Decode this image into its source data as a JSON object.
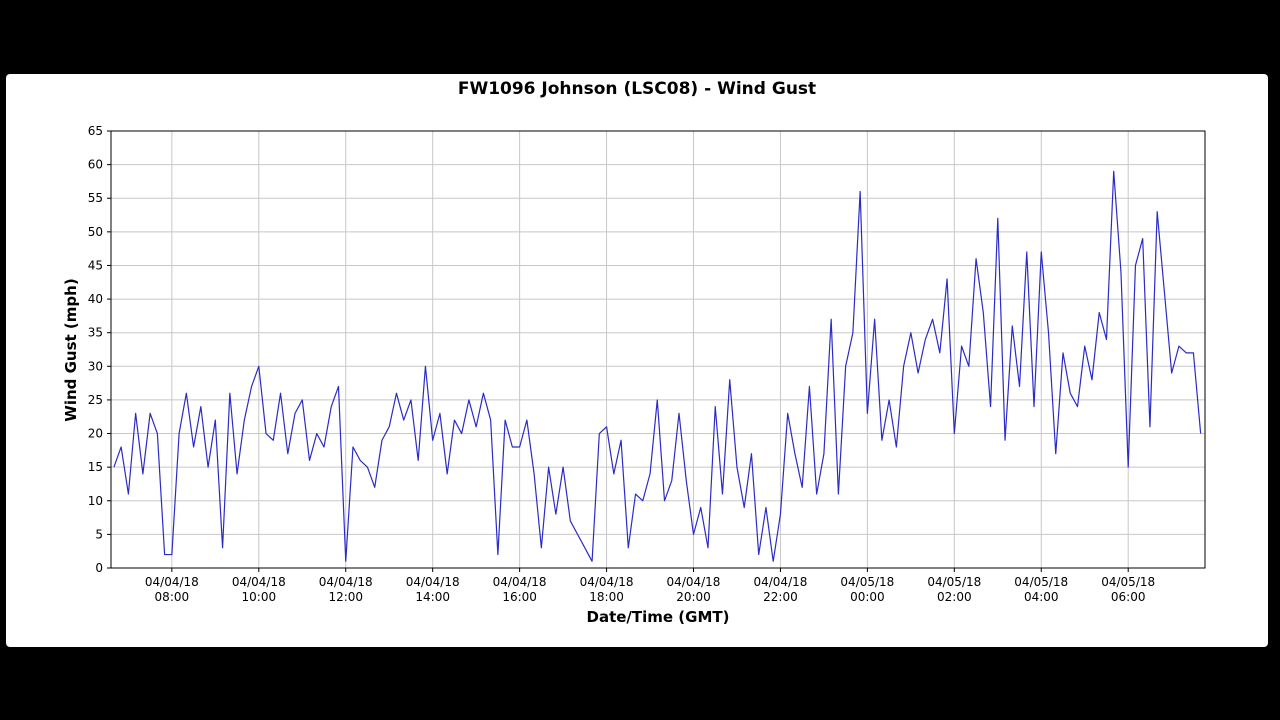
{
  "chart_data": {
    "type": "line",
    "title": "FW1096 Johnson (LSC08) - Wind Gust",
    "x_label": "Date/Time (GMT)",
    "y_label": "Wind Gust (mph)",
    "xlim": [
      "04/04/18 06:36",
      "04/05/18 07:46"
    ],
    "xticks": [
      "04/04/18 08:00",
      "04/04/18 10:00",
      "04/04/18 12:00",
      "04/04/18 14:00",
      "04/04/18 16:00",
      "04/04/18 18:00",
      "04/04/18 20:00",
      "04/04/18 22:00",
      "04/05/18 00:00",
      "04/05/18 02:00",
      "04/05/18 04:00",
      "04/05/18 06:00"
    ],
    "ylim": [
      0,
      65
    ],
    "yticks": [
      0,
      5,
      10,
      15,
      20,
      25,
      30,
      35,
      40,
      45,
      50,
      55,
      60,
      65
    ],
    "grid": true,
    "x": [
      "04/04/18 06:40",
      "04/04/18 06:50",
      "04/04/18 07:00",
      "04/04/18 07:10",
      "04/04/18 07:20",
      "04/04/18 07:30",
      "04/04/18 07:40",
      "04/04/18 07:50",
      "04/04/18 08:00",
      "04/04/18 08:10",
      "04/04/18 08:20",
      "04/04/18 08:30",
      "04/04/18 08:40",
      "04/04/18 08:50",
      "04/04/18 09:00",
      "04/04/18 09:10",
      "04/04/18 09:20",
      "04/04/18 09:30",
      "04/04/18 09:40",
      "04/04/18 09:50",
      "04/04/18 10:00",
      "04/04/18 10:10",
      "04/04/18 10:20",
      "04/04/18 10:30",
      "04/04/18 10:40",
      "04/04/18 10:50",
      "04/04/18 11:00",
      "04/04/18 11:10",
      "04/04/18 11:20",
      "04/04/18 11:30",
      "04/04/18 11:40",
      "04/04/18 11:50",
      "04/04/18 12:00",
      "04/04/18 12:10",
      "04/04/18 12:20",
      "04/04/18 12:30",
      "04/04/18 12:40",
      "04/04/18 12:50",
      "04/04/18 13:00",
      "04/04/18 13:10",
      "04/04/18 13:20",
      "04/04/18 13:30",
      "04/04/18 13:40",
      "04/04/18 13:50",
      "04/04/18 14:00",
      "04/04/18 14:10",
      "04/04/18 14:20",
      "04/04/18 14:30",
      "04/04/18 14:40",
      "04/04/18 14:50",
      "04/04/18 15:00",
      "04/04/18 15:10",
      "04/04/18 15:20",
      "04/04/18 15:30",
      "04/04/18 15:40",
      "04/04/18 15:50",
      "04/04/18 16:00",
      "04/04/18 16:10",
      "04/04/18 16:20",
      "04/04/18 16:30",
      "04/04/18 16:40",
      "04/04/18 16:50",
      "04/04/18 17:00",
      "04/04/18 17:10",
      "04/04/18 17:20",
      "04/04/18 17:30",
      "04/04/18 17:40",
      "04/04/18 17:50",
      "04/04/18 18:00",
      "04/04/18 18:10",
      "04/04/18 18:20",
      "04/04/18 18:30",
      "04/04/18 18:40",
      "04/04/18 18:50",
      "04/04/18 19:00",
      "04/04/18 19:10",
      "04/04/18 19:20",
      "04/04/18 19:30",
      "04/04/18 19:40",
      "04/04/18 19:50",
      "04/04/18 20:00",
      "04/04/18 20:10",
      "04/04/18 20:20",
      "04/04/18 20:30",
      "04/04/18 20:40",
      "04/04/18 20:50",
      "04/04/18 21:00",
      "04/04/18 21:10",
      "04/04/18 21:20",
      "04/04/18 21:30",
      "04/04/18 21:40",
      "04/04/18 21:50",
      "04/04/18 22:00",
      "04/04/18 22:10",
      "04/04/18 22:20",
      "04/04/18 22:30",
      "04/04/18 22:40",
      "04/04/18 22:50",
      "04/04/18 23:00",
      "04/04/18 23:10",
      "04/04/18 23:20",
      "04/04/18 23:30",
      "04/04/18 23:40",
      "04/04/18 23:50",
      "04/05/18 00:00",
      "04/05/18 00:10",
      "04/05/18 00:20",
      "04/05/18 00:30",
      "04/05/18 00:40",
      "04/05/18 00:50",
      "04/05/18 01:00",
      "04/05/18 01:10",
      "04/05/18 01:20",
      "04/05/18 01:30",
      "04/05/18 01:40",
      "04/05/18 01:50",
      "04/05/18 02:00",
      "04/05/18 02:10",
      "04/05/18 02:20",
      "04/05/18 02:30",
      "04/05/18 02:40",
      "04/05/18 02:50",
      "04/05/18 03:00",
      "04/05/18 03:10",
      "04/05/18 03:20",
      "04/05/18 03:30",
      "04/05/18 03:40",
      "04/05/18 03:50",
      "04/05/18 04:00",
      "04/05/18 04:10",
      "04/05/18 04:20",
      "04/05/18 04:30",
      "04/05/18 04:40",
      "04/05/18 04:50",
      "04/05/18 05:00",
      "04/05/18 05:10",
      "04/05/18 05:20",
      "04/05/18 05:30",
      "04/05/18 05:40",
      "04/05/18 05:50",
      "04/05/18 06:00",
      "04/05/18 06:10",
      "04/05/18 06:20",
      "04/05/18 06:30",
      "04/05/18 06:40",
      "04/05/18 06:50",
      "04/05/18 07:00",
      "04/05/18 07:10",
      "04/05/18 07:20",
      "04/05/18 07:30",
      "04/05/18 07:40"
    ],
    "series": [
      {
        "name": "Wind Gust",
        "color": "#2b2bc8",
        "values": [
          15,
          18,
          11,
          23,
          14,
          23,
          20,
          2,
          2,
          20,
          26,
          18,
          24,
          15,
          22,
          3,
          26,
          14,
          22,
          27,
          30,
          20,
          19,
          26,
          17,
          23,
          25,
          16,
          20,
          18,
          24,
          27,
          1,
          18,
          16,
          15,
          12,
          19,
          21,
          26,
          22,
          25,
          16,
          30,
          19,
          23,
          14,
          22,
          20,
          25,
          21,
          26,
          22,
          2,
          22,
          18,
          18,
          22,
          14,
          3,
          15,
          8,
          15,
          7,
          5,
          3,
          1,
          20,
          21,
          14,
          19,
          3,
          11,
          10,
          14,
          25,
          10,
          13,
          23,
          13,
          5,
          9,
          3,
          24,
          11,
          28,
          15,
          9,
          17,
          2,
          9,
          1,
          8,
          23,
          17,
          12,
          27,
          11,
          17,
          37,
          11,
          30,
          35,
          56,
          23,
          37,
          19,
          25,
          18,
          30,
          35,
          29,
          34,
          37,
          32,
          43,
          20,
          33,
          30,
          46,
          38,
          24,
          52,
          19,
          36,
          27,
          47,
          24,
          47,
          35,
          17,
          32,
          26,
          24,
          33,
          28,
          38,
          34,
          59,
          44,
          15,
          45,
          49,
          21,
          53,
          41,
          29,
          33,
          32,
          32,
          20
        ]
      }
    ]
  }
}
